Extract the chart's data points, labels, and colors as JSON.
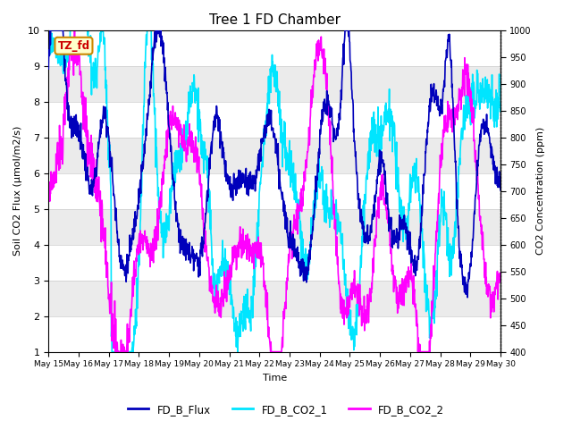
{
  "title": "Tree 1 FD Chamber",
  "xlabel": "Time",
  "ylabel_left": "Soil CO2 Flux (μmol/m2/s)",
  "ylabel_right": "CO2 Concentration (ppm)",
  "ylim_left": [
    1.0,
    10.0
  ],
  "ylim_right": [
    400,
    1000
  ],
  "xtick_labels": [
    "May 15",
    "May 16",
    "May 17",
    "May 18",
    "May 19",
    "May 20",
    "May 21",
    "May 22",
    "May 23",
    "May 24",
    "May 25",
    "May 26",
    "May 27",
    "May 28",
    "May 29",
    "May 30"
  ],
  "annotation_text": "TZ_fd",
  "annotation_bg": "#ffffcc",
  "annotation_border": "#cc8800",
  "annotation_text_color": "#cc0000",
  "flux_color": "#0000bb",
  "co2_1_color": "#00e5ff",
  "co2_2_color": "#ff00ff",
  "legend_labels": [
    "FD_B_Flux",
    "FD_B_CO2_1",
    "FD_B_CO2_2"
  ],
  "flux_lw": 1.2,
  "co2_lw": 1.2,
  "background_color": "#ffffff",
  "plot_bg_light": "#ebebeb",
  "plot_bg_dark": "#d8d8d8",
  "grid_color": "#ffffff",
  "n_points": 1440,
  "yticks_left": [
    1.0,
    2.0,
    3.0,
    4.0,
    5.0,
    6.0,
    7.0,
    8.0,
    9.0,
    10.0
  ],
  "yticks_right": [
    400,
    450,
    500,
    550,
    600,
    650,
    700,
    750,
    800,
    850,
    900,
    950,
    1000
  ]
}
